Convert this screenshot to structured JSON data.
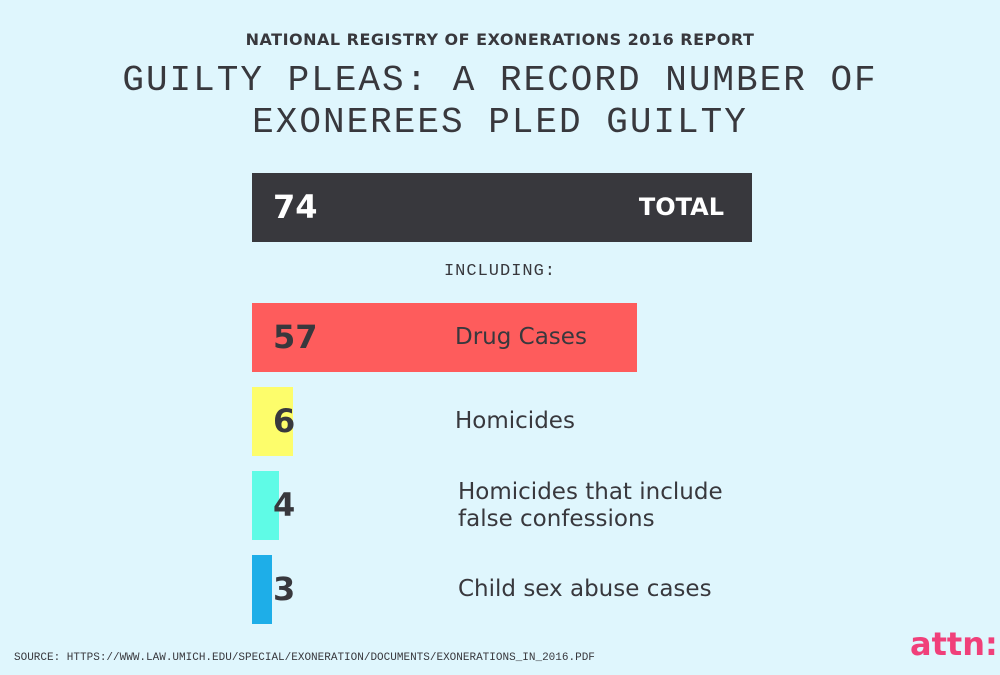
{
  "chart_data": {
    "type": "bar",
    "supertitle": "NATIONAL REGISTRY OF EXONERATIONS 2016 REPORT",
    "title": "GUILTY PLEAS: A RECORD NUMBER OF EXONEREES PLED GUILTY",
    "total": {
      "label": "TOTAL",
      "value": 74,
      "color": "#38383d"
    },
    "subheading": "INCLUDING:",
    "categories": [
      "Drug Cases",
      "Homicides",
      "Homicides that include false confessions",
      "Child sex abuse cases"
    ],
    "values": [
      57,
      6,
      4,
      3
    ],
    "colors": [
      "#fe5c5c",
      "#fdfd6b",
      "#5ffbe6",
      "#1eaee8"
    ]
  },
  "source": "SOURCE: HTTPS://WWW.LAW.UMICH.EDU/SPECIAL/EXONERATION/DOCUMENTS/EXONERATIONS_IN_2016.PDF",
  "logo": "attn:"
}
